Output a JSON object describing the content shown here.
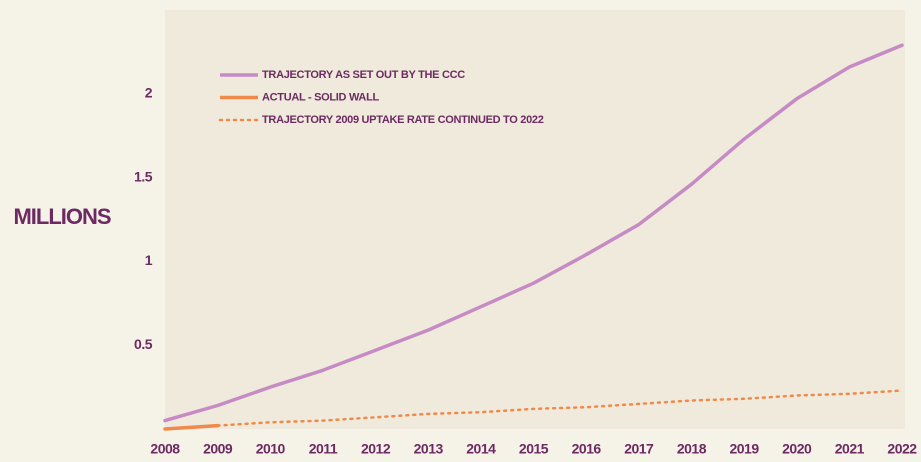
{
  "chart_data": {
    "type": "line",
    "y_label": "MILLIONS",
    "x": [
      2008,
      2009,
      2010,
      2011,
      2012,
      2013,
      2014,
      2015,
      2016,
      2017,
      2018,
      2019,
      2020,
      2021,
      2022
    ],
    "xlim": [
      2008,
      2022
    ],
    "xticks": [
      2008,
      2009,
      2010,
      2011,
      2012,
      2013,
      2014,
      2015,
      2016,
      2017,
      2018,
      2019,
      2020,
      2021,
      2022
    ],
    "ylim": [
      0,
      2.5
    ],
    "yticks": [
      0.5,
      1,
      1.5,
      2
    ],
    "grid": false,
    "legend": "upper left",
    "series": [
      {
        "name": "TRAJECTORY AS SET OUT BY THE CCC",
        "color": "#c68bc5",
        "line_style": "solid",
        "values": [
          0.05,
          0.14,
          0.25,
          0.35,
          0.47,
          0.59,
          0.73,
          0.87,
          1.04,
          1.22,
          1.46,
          1.73,
          1.97,
          2.16,
          2.29
        ]
      },
      {
        "name": "ACTUAL - SOLID WALL",
        "color": "#f08a4b",
        "line_style": "solid",
        "values": [
          0,
          0.02,
          null,
          null,
          null,
          null,
          null,
          null,
          null,
          null,
          null,
          null,
          null,
          null,
          null
        ]
      },
      {
        "name": "TRAJECTORY 2009 UPTAKE RATE CONTINUED TO 2022",
        "color": "#f08a4b",
        "line_style": "dotted",
        "values": [
          null,
          0.02,
          0.04,
          0.05,
          0.07,
          0.09,
          0.1,
          0.12,
          0.13,
          0.15,
          0.17,
          0.18,
          0.2,
          0.21,
          0.23
        ]
      }
    ]
  }
}
